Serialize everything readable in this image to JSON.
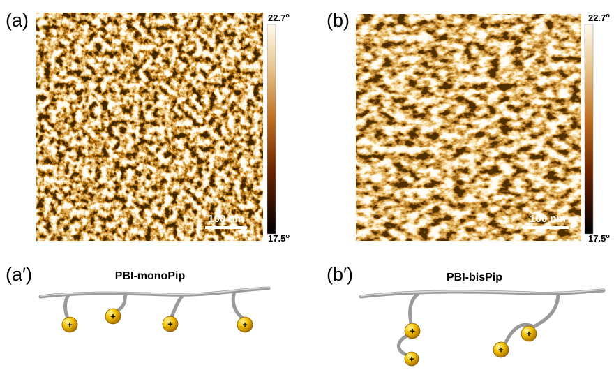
{
  "panels": [
    {
      "label": "(a)",
      "scale_bar": "100 nm",
      "colorbar": {
        "max": "22.7",
        "min": "17.5",
        "unit": "o"
      }
    },
    {
      "label": "(b)",
      "scale_bar": "100 nm",
      "colorbar": {
        "max": "22.7",
        "min": "17.5",
        "unit": "o"
      }
    }
  ],
  "schemes": [
    {
      "label": "(a′)",
      "title": "PBI-monoPip"
    },
    {
      "label": "(b′)",
      "title": "PBI-bisPip"
    }
  ],
  "charge_symbol": "+"
}
